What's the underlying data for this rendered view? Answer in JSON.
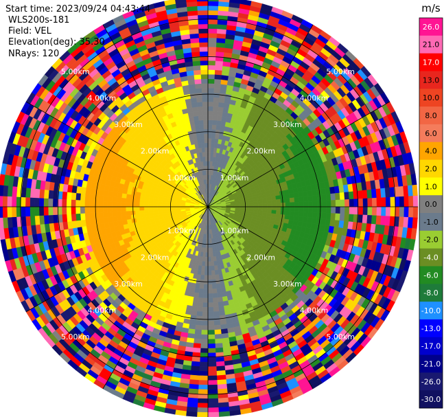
{
  "header": {
    "start_time": "Start time: 2023/09/24 04:43:44",
    "instrument": "WLS200s-181",
    "field": "Field: VEL",
    "elevation": "Elevation(deg): 35.30",
    "nrays": "NRays: 120"
  },
  "chart_data": {
    "type": "heatmap",
    "projection": "polar-ppi",
    "field": "VEL",
    "units": "m/s",
    "elevation_deg": 35.3,
    "n_rays": 120,
    "range_rings_km": [
      1.0,
      2.0,
      3.0,
      4.0,
      5.0
    ],
    "ring_labels": [
      "1.00km",
      "2.00km",
      "3.00km",
      "4.00km",
      "5.00km"
    ],
    "max_range_km": 5.6,
    "spokes_deg": [
      0,
      30,
      60,
      90,
      120,
      150,
      180,
      210,
      240,
      270,
      300,
      330
    ],
    "colorbar": {
      "label": "m/s",
      "ticks": [
        "26.0",
        "21.0",
        "17.0",
        "13.0",
        "10.0",
        "8.0",
        "6.0",
        "4.0",
        "2.0",
        "1.0",
        "0.0",
        "-1.0",
        "-2.0",
        "-4.0",
        "-6.0",
        "-8.0",
        "-10.0",
        "-13.0",
        "-17.0",
        "-21.0",
        "-26.0",
        "-30.0"
      ],
      "colors": [
        "#ff1493",
        "#ff69b4",
        "#ff0000",
        "#e8261e",
        "#ee4422",
        "#f26644",
        "#f47c5c",
        "#ffa500",
        "#ffd700",
        "#ffff00",
        "#808080",
        "#6b7b8c",
        "#9acd32",
        "#6b8e23",
        "#228b22",
        "#1e7b3a",
        "#1e90ff",
        "#0000ff",
        "#0000cd",
        "#00008b",
        "#191970",
        "#101060"
      ]
    },
    "velocity_pattern": {
      "description_free": true,
      "receding_sector_deg": [
        200,
        340
      ],
      "approaching_sector_deg": [
        20,
        160
      ],
      "zero_line_deg": [
        350,
        170
      ]
    }
  }
}
